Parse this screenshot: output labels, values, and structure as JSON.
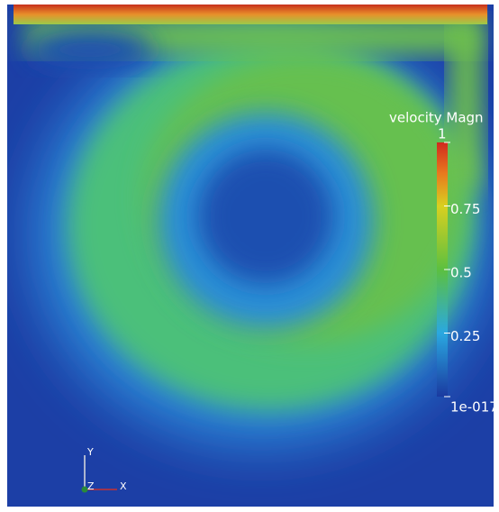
{
  "colorbar": {
    "title": "velocity Magn",
    "ticks": [
      {
        "value": 1,
        "label": "1"
      },
      {
        "value": 0.75,
        "label": "0.75"
      },
      {
        "value": 0.5,
        "label": "0.5"
      },
      {
        "value": 0.25,
        "label": "0.25"
      },
      {
        "value": 1e-17,
        "label": "1e-017"
      }
    ]
  },
  "axes_triad": {
    "y": "Y",
    "z": "Z",
    "x": "X"
  }
}
